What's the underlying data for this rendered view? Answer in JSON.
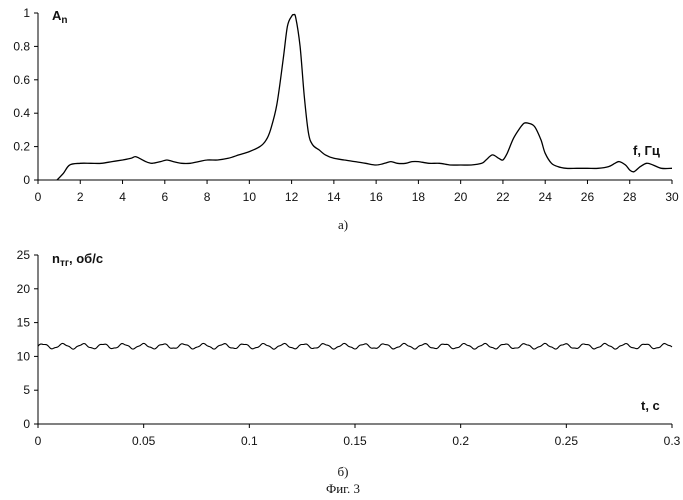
{
  "caption": "Фиг. 3",
  "chart_data": [
    {
      "type": "line",
      "panel_label": "а)",
      "ylabel": "A",
      "ylabel_sub": "n",
      "xlabel": "f, Гц",
      "xlim": [
        0,
        30
      ],
      "ylim": [
        0,
        1
      ],
      "xticks": [
        "0",
        "2",
        "4",
        "6",
        "8",
        "10",
        "12",
        "14",
        "16",
        "18",
        "20",
        "22",
        "24",
        "26",
        "28",
        "30"
      ],
      "yticks": [
        "0",
        "0.2",
        "0.4",
        "0.6",
        "0.8",
        "1"
      ],
      "series": [
        {
          "x": [
            0.9,
            1.2,
            1.5,
            2,
            2.5,
            3,
            3.5,
            4,
            4.4,
            4.6,
            4.8,
            5.1,
            5.4,
            5.8,
            6.1,
            6.4,
            6.8,
            7.2,
            7.6,
            8,
            8.5,
            9,
            9.5,
            10,
            10.5,
            10.8,
            11,
            11.3,
            11.6,
            11.8,
            12,
            12.1,
            12.2,
            12.4,
            12.6,
            12.8,
            13,
            13.3,
            13.6,
            14,
            14.5,
            15,
            15.5,
            16,
            16.4,
            16.7,
            17,
            17.4,
            17.7,
            18,
            18.5,
            19,
            19.5,
            20,
            20.5,
            21,
            21.2,
            21.5,
            21.8,
            22,
            22.2,
            22.5,
            22.8,
            23,
            23.2,
            23.5,
            23.8,
            24,
            24.3,
            24.6,
            25,
            25.5,
            26,
            26.5,
            27,
            27.3,
            27.5,
            27.8,
            28,
            28.2,
            28.5,
            28.8,
            29.1,
            29.5,
            30
          ],
          "y": [
            0,
            0.04,
            0.09,
            0.1,
            0.1,
            0.1,
            0.11,
            0.12,
            0.13,
            0.14,
            0.13,
            0.11,
            0.1,
            0.11,
            0.12,
            0.11,
            0.1,
            0.1,
            0.11,
            0.12,
            0.12,
            0.13,
            0.15,
            0.17,
            0.2,
            0.24,
            0.3,
            0.45,
            0.72,
            0.92,
            0.98,
            0.99,
            0.97,
            0.8,
            0.5,
            0.28,
            0.21,
            0.18,
            0.15,
            0.13,
            0.12,
            0.11,
            0.1,
            0.09,
            0.1,
            0.11,
            0.1,
            0.1,
            0.11,
            0.11,
            0.1,
            0.1,
            0.09,
            0.09,
            0.09,
            0.1,
            0.12,
            0.15,
            0.13,
            0.12,
            0.16,
            0.25,
            0.31,
            0.34,
            0.34,
            0.32,
            0.24,
            0.16,
            0.1,
            0.08,
            0.07,
            0.07,
            0.07,
            0.07,
            0.08,
            0.1,
            0.11,
            0.09,
            0.06,
            0.05,
            0.08,
            0.1,
            0.09,
            0.07,
            0.07
          ]
        }
      ]
    },
    {
      "type": "line",
      "panel_label": "б)",
      "ylabel": "n",
      "ylabel_sub": "тг",
      "ylabel_suffix": ", об/с",
      "xlabel": "t, с",
      "xlim": [
        0,
        0.3
      ],
      "ylim": [
        0,
        25
      ],
      "xticks": [
        "0",
        "0.05",
        "0.1",
        "0.15",
        "0.2",
        "0.25",
        "0.3"
      ],
      "yticks": [
        "0",
        "5",
        "10",
        "15",
        "20",
        "25"
      ],
      "series": [
        {
          "mean": 11.5,
          "amplitude": 0.35,
          "oscillation_period": 0.0095,
          "x_range": [
            0,
            0.3
          ]
        }
      ]
    }
  ]
}
